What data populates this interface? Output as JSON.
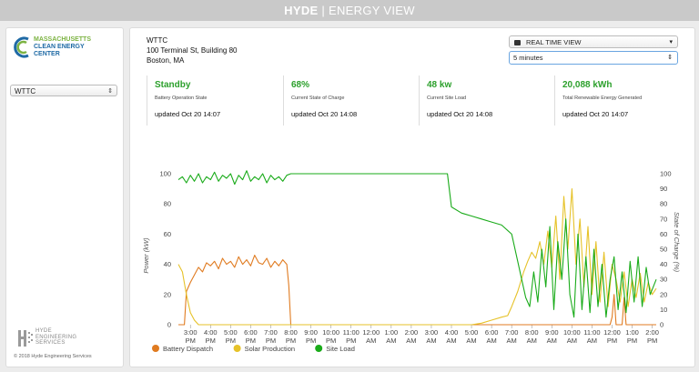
{
  "header": {
    "brand": "HYDE",
    "separator": "|",
    "title": "ENERGY VIEW"
  },
  "sidebar": {
    "logo_lines": [
      "MASSACHUSETTS",
      "CLEAN ENERGY",
      "CENTER"
    ],
    "site_select": {
      "value": "WTTC"
    },
    "footer_logo_lines": [
      "HYDE",
      "ENGINEERING",
      "SERVICES"
    ],
    "copyright": "© 2018 Hyde Engineering Services"
  },
  "site": {
    "name": "WTTC",
    "address1": "100 Terminal St, Building 80",
    "address2": "Boston, MA"
  },
  "controls": {
    "view_select": "REAL TIME VIEW",
    "interval_select": "5 minutes"
  },
  "stats": [
    {
      "value": "Standby",
      "label": "Battery Operation State",
      "updated": "updated Oct 20 14:07"
    },
    {
      "value": "68%",
      "label": "Current State of Charge",
      "updated": "updated Oct 20 14:08"
    },
    {
      "value": "48 kw",
      "label": "Current Site Load",
      "updated": "updated Oct 20 14:08"
    },
    {
      "value": "20,088 kWh",
      "label": "Total Renewable Energy Generated",
      "updated": "updated Oct 20 14:07"
    }
  ],
  "colors": {
    "accent_green": "#2ca02c",
    "battery": "#e07b20",
    "solar": "#e6c229",
    "load": "#1aab1a"
  },
  "chart_data": {
    "type": "line",
    "ylabel": "Power (kW)",
    "y2label": "State of Charge (%)",
    "ylim": [
      0,
      100
    ],
    "y2lim": [
      0,
      100
    ],
    "yticks": [
      0,
      20,
      40,
      60,
      80,
      100
    ],
    "y2ticks": [
      0,
      10,
      20,
      30,
      40,
      50,
      60,
      70,
      80,
      90,
      100
    ],
    "x_start_hour": 14.4,
    "x_end_hour": 38.2,
    "xtick_hours": [
      15,
      16,
      17,
      18,
      19,
      20,
      21,
      22,
      23,
      24,
      25,
      26,
      27,
      28,
      29,
      30,
      31,
      32,
      33,
      34,
      35,
      36,
      37,
      38
    ],
    "xtick_labels": [
      [
        "3:00",
        "PM"
      ],
      [
        "4:00",
        "PM"
      ],
      [
        "5:00",
        "PM"
      ],
      [
        "6:00",
        "PM"
      ],
      [
        "7:00",
        "PM"
      ],
      [
        "8:00",
        "PM"
      ],
      [
        "9:00",
        "PM"
      ],
      [
        "10:00",
        "PM"
      ],
      [
        "11:00",
        "PM"
      ],
      [
        "12:00",
        "AM"
      ],
      [
        "1:00",
        "AM"
      ],
      [
        "2:00",
        "AM"
      ],
      [
        "3:00",
        "AM"
      ],
      [
        "4:00",
        "AM"
      ],
      [
        "5:00",
        "AM"
      ],
      [
        "6:00",
        "AM"
      ],
      [
        "7:00",
        "AM"
      ],
      [
        "8:00",
        "AM"
      ],
      [
        "9:00",
        "AM"
      ],
      [
        "10:00",
        "AM"
      ],
      [
        "11:00",
        "AM"
      ],
      [
        "12:00",
        "PM"
      ],
      [
        "1:00",
        "PM"
      ],
      [
        "2:00",
        "PM"
      ]
    ],
    "legend": "bottom-left",
    "series": [
      {
        "name": "Battery Dispatch",
        "color": "#e07b20",
        "points": [
          [
            14.4,
            0
          ],
          [
            14.7,
            0
          ],
          [
            14.8,
            22
          ],
          [
            15.0,
            28
          ],
          [
            15.2,
            33
          ],
          [
            15.4,
            38
          ],
          [
            15.6,
            35
          ],
          [
            15.8,
            41
          ],
          [
            16.0,
            39
          ],
          [
            16.2,
            42
          ],
          [
            16.4,
            37
          ],
          [
            16.6,
            44
          ],
          [
            16.8,
            40
          ],
          [
            17.0,
            42
          ],
          [
            17.2,
            38
          ],
          [
            17.4,
            45
          ],
          [
            17.6,
            40
          ],
          [
            17.8,
            43
          ],
          [
            18.0,
            39
          ],
          [
            18.2,
            46
          ],
          [
            18.4,
            41
          ],
          [
            18.6,
            40
          ],
          [
            18.8,
            44
          ],
          [
            19.0,
            38
          ],
          [
            19.2,
            42
          ],
          [
            19.4,
            39
          ],
          [
            19.6,
            43
          ],
          [
            19.8,
            40
          ],
          [
            19.9,
            26
          ],
          [
            20.0,
            0
          ],
          [
            20.4,
            0
          ],
          [
            35.9,
            0
          ],
          [
            36.0,
            5
          ],
          [
            36.1,
            20
          ],
          [
            36.2,
            0
          ],
          [
            36.5,
            0
          ],
          [
            36.6,
            18
          ],
          [
            36.7,
            0
          ],
          [
            38.2,
            0
          ]
        ]
      },
      {
        "name": "Solar Production",
        "color": "#e6c229",
        "points": [
          [
            14.4,
            40
          ],
          [
            14.6,
            35
          ],
          [
            14.8,
            20
          ],
          [
            15.0,
            8
          ],
          [
            15.2,
            3
          ],
          [
            15.4,
            0
          ],
          [
            29.0,
            0
          ],
          [
            29.5,
            1
          ],
          [
            30.0,
            3
          ],
          [
            30.5,
            5
          ],
          [
            30.8,
            6
          ],
          [
            31.0,
            12
          ],
          [
            31.3,
            22
          ],
          [
            31.6,
            35
          ],
          [
            31.8,
            42
          ],
          [
            32.0,
            48
          ],
          [
            32.2,
            44
          ],
          [
            32.4,
            55
          ],
          [
            32.6,
            40
          ],
          [
            32.8,
            62
          ],
          [
            33.0,
            38
          ],
          [
            33.2,
            72
          ],
          [
            33.4,
            30
          ],
          [
            33.6,
            85
          ],
          [
            33.8,
            50
          ],
          [
            34.0,
            90
          ],
          [
            34.2,
            40
          ],
          [
            34.4,
            70
          ],
          [
            34.6,
            25
          ],
          [
            34.8,
            65
          ],
          [
            35.0,
            20
          ],
          [
            35.2,
            55
          ],
          [
            35.4,
            15
          ],
          [
            35.6,
            48
          ],
          [
            35.8,
            12
          ],
          [
            36.0,
            40
          ],
          [
            36.2,
            30
          ],
          [
            36.4,
            15
          ],
          [
            36.6,
            35
          ],
          [
            36.8,
            12
          ],
          [
            37.0,
            30
          ],
          [
            37.2,
            18
          ],
          [
            37.4,
            34
          ],
          [
            37.6,
            15
          ],
          [
            37.8,
            28
          ],
          [
            38.0,
            20
          ],
          [
            38.2,
            24
          ]
        ]
      },
      {
        "name": "Site Load",
        "color": "#1aab1a",
        "points": [
          [
            14.4,
            96
          ],
          [
            14.6,
            98
          ],
          [
            14.8,
            94
          ],
          [
            15.0,
            99
          ],
          [
            15.2,
            95
          ],
          [
            15.4,
            100
          ],
          [
            15.6,
            94
          ],
          [
            15.8,
            98
          ],
          [
            16.0,
            96
          ],
          [
            16.2,
            101
          ],
          [
            16.4,
            95
          ],
          [
            16.6,
            99
          ],
          [
            16.8,
            97
          ],
          [
            17.0,
            100
          ],
          [
            17.2,
            93
          ],
          [
            17.4,
            99
          ],
          [
            17.6,
            96
          ],
          [
            17.8,
            102
          ],
          [
            18.0,
            95
          ],
          [
            18.2,
            98
          ],
          [
            18.4,
            96
          ],
          [
            18.6,
            100
          ],
          [
            18.8,
            94
          ],
          [
            19.0,
            99
          ],
          [
            19.2,
            96
          ],
          [
            19.4,
            98
          ],
          [
            19.6,
            95
          ],
          [
            19.8,
            99
          ],
          [
            20.0,
            100
          ],
          [
            22.0,
            100
          ],
          [
            24.0,
            100
          ],
          [
            26.0,
            100
          ],
          [
            27.5,
            100
          ],
          [
            27.8,
            100
          ],
          [
            28.0,
            78
          ],
          [
            28.5,
            74
          ],
          [
            29.0,
            72
          ],
          [
            29.5,
            70
          ],
          [
            30.0,
            68
          ],
          [
            30.5,
            66
          ],
          [
            31.0,
            60
          ],
          [
            31.3,
            42
          ],
          [
            31.5,
            30
          ],
          [
            31.7,
            18
          ],
          [
            31.9,
            12
          ],
          [
            32.1,
            35
          ],
          [
            32.3,
            15
          ],
          [
            32.5,
            50
          ],
          [
            32.7,
            25
          ],
          [
            32.9,
            65
          ],
          [
            33.1,
            10
          ],
          [
            33.3,
            55
          ],
          [
            33.5,
            30
          ],
          [
            33.7,
            70
          ],
          [
            33.9,
            20
          ],
          [
            34.1,
            5
          ],
          [
            34.3,
            60
          ],
          [
            34.5,
            10
          ],
          [
            34.7,
            45
          ],
          [
            34.9,
            8
          ],
          [
            35.1,
            50
          ],
          [
            35.3,
            12
          ],
          [
            35.5,
            40
          ],
          [
            35.7,
            5
          ],
          [
            35.9,
            30
          ],
          [
            36.1,
            45
          ],
          [
            36.3,
            10
          ],
          [
            36.5,
            35
          ],
          [
            36.7,
            8
          ],
          [
            36.9,
            42
          ],
          [
            37.1,
            15
          ],
          [
            37.3,
            45
          ],
          [
            37.5,
            12
          ],
          [
            37.7,
            38
          ],
          [
            37.9,
            20
          ],
          [
            38.2,
            30
          ]
        ]
      }
    ]
  }
}
